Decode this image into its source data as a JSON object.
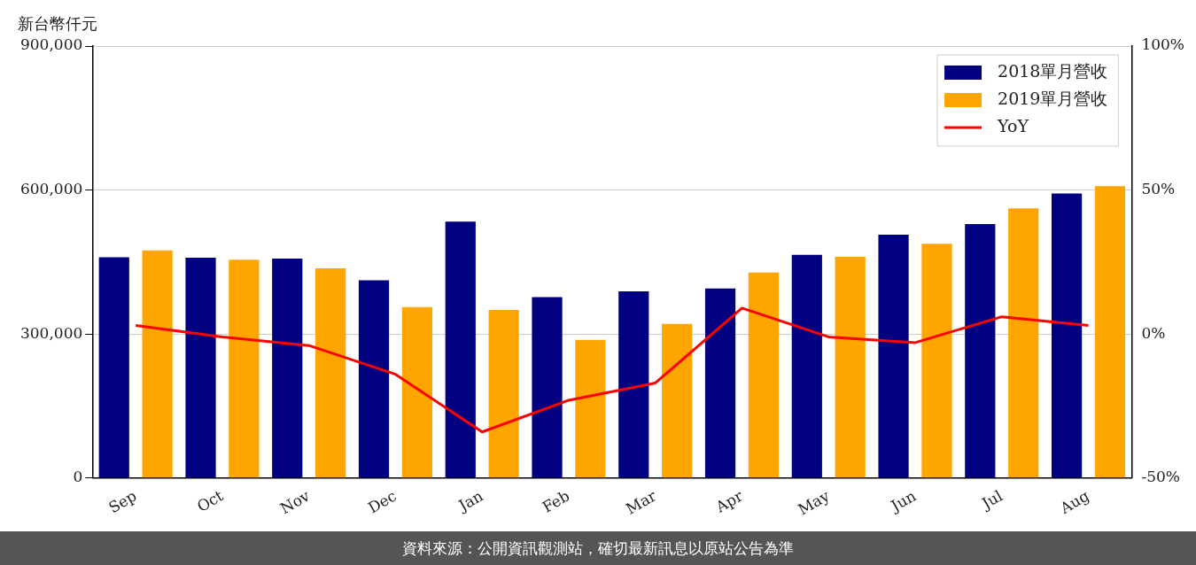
{
  "chart_data": {
    "type": "bar",
    "ylabel": "新台幣仟元",
    "categories": [
      "Sep",
      "Oct",
      "Nov",
      "Dec",
      "Jan",
      "Feb",
      "Mar",
      "Apr",
      "May",
      "Jun",
      "Jul",
      "Aug"
    ],
    "series": [
      {
        "name": "2018單月營收",
        "color": "#000080",
        "values": [
          460000,
          459000,
          457000,
          412000,
          534000,
          377000,
          389000,
          395000,
          465000,
          507000,
          529000,
          593000
        ]
      },
      {
        "name": "2019單月營收",
        "color": "#ffa500",
        "values": [
          474000,
          455000,
          437000,
          356000,
          350000,
          288000,
          321000,
          428000,
          461000,
          488000,
          562000,
          608000
        ]
      },
      {
        "name": "YoY",
        "type": "line",
        "axis": "y2",
        "color": "#ff0000",
        "values": [
          3,
          -1,
          -4,
          -14,
          -34,
          -23,
          -17,
          9,
          -1,
          -3,
          6,
          3
        ]
      }
    ],
    "ylim": [
      0,
      900000
    ],
    "yticks": [
      {
        "value": 0,
        "label": "0"
      },
      {
        "value": 300000,
        "label": "300,000"
      },
      {
        "value": 600000,
        "label": "600,000"
      },
      {
        "value": 900000,
        "label": "900,000"
      }
    ],
    "y2lim": [
      -50,
      100
    ],
    "y2ticks": [
      {
        "value": -50,
        "label": "-50%"
      },
      {
        "value": 0,
        "label": "0%"
      },
      {
        "value": 50,
        "label": "50%"
      },
      {
        "value": 100,
        "label": "100%"
      }
    ],
    "grid": "y",
    "legend": "top right",
    "annotations": [
      "資料來源：公開資訊觀測站，確切最新訊息以原站公告為準"
    ]
  }
}
